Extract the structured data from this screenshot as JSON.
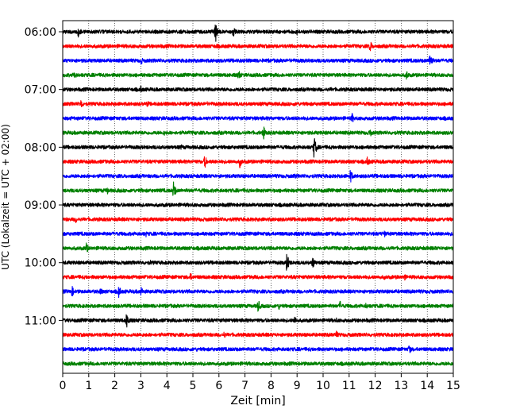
{
  "chart_data": {
    "type": "line",
    "title": "",
    "xlabel": "Zeit  [min]",
    "ylabel": "UTC (Lokalzeit = UTC + 02:00)",
    "xlim": [
      0,
      15
    ],
    "xticks": [
      "0",
      "1",
      "2",
      "3",
      "4",
      "5",
      "6",
      "7",
      "8",
      "9",
      "10",
      "11",
      "12",
      "13",
      "14",
      "15"
    ],
    "ytick_labels": [
      "06:00",
      "07:00",
      "08:00",
      "09:00",
      "10:00",
      "11:00"
    ],
    "trace_interval_min": 15,
    "first_trace": "06:00",
    "grid": "vertical dotted",
    "legend": "none",
    "color_cycle": [
      "#000000",
      "#ff0000",
      "#0000ff",
      "#008000"
    ],
    "traces": [
      {
        "start": "06:00",
        "color": "#000000",
        "events": [
          [
            0.6,
            9
          ],
          [
            5.85,
            17
          ],
          [
            6.55,
            7
          ],
          [
            9.0,
            4
          ],
          [
            14.7,
            3
          ]
        ]
      },
      {
        "start": "06:15",
        "color": "#ff0000",
        "events": [
          [
            5.9,
            4
          ],
          [
            11.8,
            8
          ]
        ]
      },
      {
        "start": "06:30",
        "color": "#0000ff",
        "events": [
          [
            3.0,
            6
          ],
          [
            14.1,
            12
          ]
        ]
      },
      {
        "start": "06:45",
        "color": "#008000",
        "events": [
          [
            0.45,
            6
          ],
          [
            6.75,
            7
          ],
          [
            13.2,
            7
          ]
        ]
      },
      {
        "start": "07:00",
        "color": "#000000",
        "events": [
          [
            3.0,
            5
          ],
          [
            10.3,
            3
          ]
        ]
      },
      {
        "start": "07:15",
        "color": "#ff0000",
        "events": [
          [
            0.7,
            7
          ],
          [
            3.25,
            5
          ],
          [
            5.55,
            3
          ],
          [
            8.9,
            3
          ]
        ]
      },
      {
        "start": "07:30",
        "color": "#0000ff",
        "events": [
          [
            11.1,
            8
          ],
          [
            12.2,
            4
          ]
        ]
      },
      {
        "start": "07:45",
        "color": "#008000",
        "events": [
          [
            7.7,
            10
          ],
          [
            11.8,
            6
          ],
          [
            3.9,
            4
          ]
        ]
      },
      {
        "start": "08:00",
        "color": "#000000",
        "events": [
          [
            9.65,
            15
          ],
          [
            4.55,
            4
          ]
        ]
      },
      {
        "start": "08:15",
        "color": "#ff0000",
        "events": [
          [
            5.45,
            9
          ],
          [
            6.8,
            8
          ],
          [
            11.7,
            7
          ]
        ]
      },
      {
        "start": "08:30",
        "color": "#0000ff",
        "events": [
          [
            11.05,
            9
          ],
          [
            8.9,
            4
          ]
        ]
      },
      {
        "start": "08:45",
        "color": "#008000",
        "events": [
          [
            1.7,
            6
          ],
          [
            4.25,
            12
          ],
          [
            3.0,
            3
          ]
        ]
      },
      {
        "start": "09:00",
        "color": "#000000",
        "events": [
          [
            9.6,
            3
          ],
          [
            13.3,
            3
          ]
        ]
      },
      {
        "start": "09:15",
        "color": "#ff0000",
        "events": [
          [
            0.5,
            5
          ],
          [
            14.3,
            3
          ]
        ]
      },
      {
        "start": "09:30",
        "color": "#0000ff",
        "events": [
          [
            12.35,
            5
          ],
          [
            3.2,
            4
          ]
        ]
      },
      {
        "start": "09:45",
        "color": "#008000",
        "events": [
          [
            0.9,
            8
          ],
          [
            14.3,
            3
          ]
        ]
      },
      {
        "start": "10:00",
        "color": "#000000",
        "events": [
          [
            8.6,
            13
          ],
          [
            9.6,
            9
          ],
          [
            3.35,
            4
          ]
        ]
      },
      {
        "start": "10:15",
        "color": "#ff0000",
        "events": [
          [
            4.9,
            6
          ],
          [
            12.35,
            4
          ],
          [
            13.1,
            6
          ]
        ]
      },
      {
        "start": "10:30",
        "color": "#0000ff",
        "events": [
          [
            0.35,
            8
          ],
          [
            1.45,
            6
          ],
          [
            2.15,
            8
          ],
          [
            3.0,
            7
          ]
        ]
      },
      {
        "start": "10:45",
        "color": "#008000",
        "events": [
          [
            7.5,
            9
          ],
          [
            8.3,
            5
          ],
          [
            10.65,
            7
          ],
          [
            11.65,
            5
          ]
        ]
      },
      {
        "start": "11:00",
        "color": "#000000",
        "events": [
          [
            2.45,
            11
          ],
          [
            8.9,
            7
          ],
          [
            10.5,
            4
          ]
        ]
      },
      {
        "start": "11:15",
        "color": "#ff0000",
        "events": [
          [
            6.2,
            5
          ],
          [
            10.5,
            6
          ]
        ]
      },
      {
        "start": "11:30",
        "color": "#0000ff",
        "events": [
          [
            13.3,
            7
          ],
          [
            5.15,
            3
          ]
        ]
      },
      {
        "start": "11:45",
        "color": "#008000",
        "events": [
          [
            1.4,
            3
          ]
        ]
      }
    ]
  }
}
